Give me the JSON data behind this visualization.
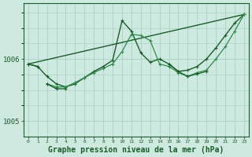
{
  "background_color": "#ceeae0",
  "plot_bg_color": "#ceeae0",
  "grid_color": "#9ecfbe",
  "line_color_dark": "#1a5c2a",
  "line_color_mid": "#2e8b4a",
  "xlabel": "Graphe pression niveau de la mer (hPa)",
  "xlabel_fontsize": 7.0,
  "ytick_labels": [
    "1005",
    "1006"
  ],
  "ytick_positions": [
    1005.0,
    1006.0
  ],
  "ylim": [
    1004.75,
    1006.9
  ],
  "xlim": [
    -0.5,
    23.5
  ],
  "xtick_labels": [
    "0",
    "1",
    "2",
    "3",
    "4",
    "5",
    "6",
    "7",
    "8",
    "9",
    "10",
    "11",
    "12",
    "13",
    "14",
    "15",
    "16",
    "17",
    "18",
    "19",
    "20",
    "21",
    "22",
    "23"
  ],
  "series": [
    {
      "x": [
        0,
        23
      ],
      "y": [
        1005.92,
        1006.72
      ],
      "color": "#1a5c2a",
      "linewidth": 1.0,
      "marker": null,
      "markersize": 0,
      "linestyle": "-"
    },
    {
      "x": [
        0,
        1,
        2,
        3,
        4,
        5,
        6,
        7,
        8,
        9,
        10,
        11,
        12,
        13,
        14,
        15,
        16,
        17,
        18,
        19,
        20,
        21,
        22,
        23
      ],
      "y": [
        1005.92,
        1005.88,
        1005.72,
        1005.6,
        1005.55,
        1005.6,
        1005.7,
        1005.8,
        1005.88,
        1005.98,
        1006.62,
        1006.45,
        1006.1,
        1005.95,
        1006.0,
        1005.92,
        1005.8,
        1005.82,
        1005.88,
        1006.0,
        1006.18,
        1006.38,
        1006.58,
        1006.72
      ],
      "color": "#1a5c2a",
      "linewidth": 1.0,
      "marker": "+",
      "markersize": 3.5,
      "linestyle": "-"
    },
    {
      "x": [
        2,
        3,
        4,
        5,
        6,
        7,
        8,
        9,
        10,
        11,
        12,
        13,
        14,
        15,
        16,
        17,
        18,
        19,
        20,
        21,
        22,
        23
      ],
      "y": [
        1005.6,
        1005.55,
        1005.55,
        1005.62,
        1005.7,
        1005.78,
        1005.85,
        1005.92,
        1006.12,
        1006.4,
        1006.38,
        1006.3,
        1005.92,
        1005.88,
        1005.78,
        1005.72,
        1005.78,
        1005.82,
        1006.0,
        1006.2,
        1006.45,
        1006.72
      ],
      "color": "#2e8b4a",
      "linewidth": 0.9,
      "marker": "+",
      "markersize": 3.5,
      "linestyle": "-"
    },
    {
      "x": [
        0,
        1
      ],
      "y": [
        1005.92,
        1005.88
      ],
      "color": "#1a5c2a",
      "linewidth": 1.0,
      "marker": "+",
      "markersize": 3.5,
      "linestyle": "-"
    },
    {
      "x": [
        2,
        3,
        4
      ],
      "y": [
        1005.6,
        1005.52,
        1005.52
      ],
      "color": "#1a5c2a",
      "linewidth": 1.0,
      "marker": "+",
      "markersize": 3.5,
      "linestyle": "-"
    },
    {
      "x": [
        15,
        16,
        17,
        18,
        19
      ],
      "y": [
        1005.92,
        1005.8,
        1005.72,
        1005.76,
        1005.8
      ],
      "color": "#1a5c2a",
      "linewidth": 0.9,
      "marker": "+",
      "markersize": 3.5,
      "linestyle": "-"
    }
  ]
}
